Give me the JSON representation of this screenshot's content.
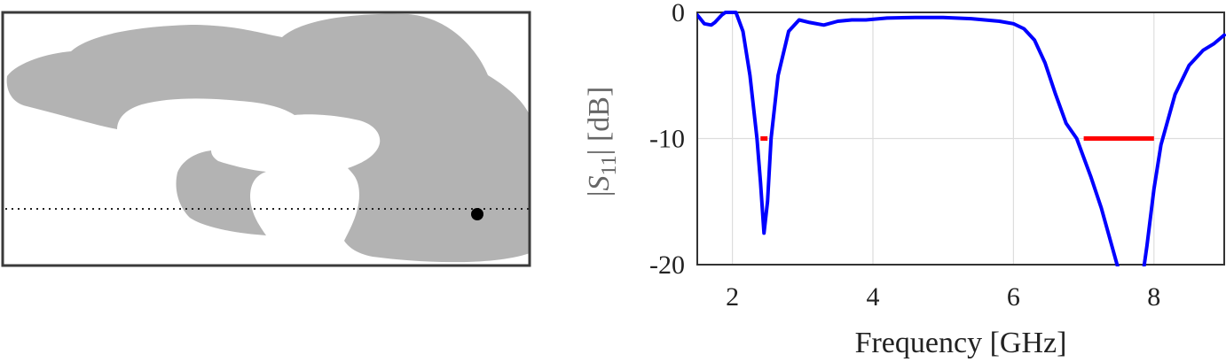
{
  "chart_data": [
    {
      "type": "diagram",
      "description_visible": "",
      "feed_marker": "black dot on dotted horizontal line"
    },
    {
      "type": "line",
      "xlabel": "Frequency [GHz]",
      "ylabel": {
        "open": "|",
        "symbol": "S",
        "subscript": "11",
        "close": "|",
        "unit": " [dB]"
      },
      "xlim": [
        1.5,
        9
      ],
      "ylim": [
        -20,
        0
      ],
      "x_ticks": [
        2,
        4,
        6,
        8
      ],
      "y_ticks": [
        0,
        -10,
        -20
      ],
      "x_tick_labels": [
        "2",
        "4",
        "6",
        "8"
      ],
      "y_tick_labels": [
        "0",
        "-10",
        "-20"
      ],
      "grid": true,
      "colors": {
        "curve": "#0000ff",
        "target": "#ff0000",
        "grid": "#dddddd",
        "shape": "#b3b3b3"
      },
      "series": [
        {
          "x": [
            1.5,
            1.6,
            1.7,
            1.75,
            1.85,
            1.9,
            2.05,
            2.15,
            2.25,
            2.35,
            2.4,
            2.45,
            2.5,
            2.55,
            2.65,
            2.8,
            2.95,
            3.1,
            3.3,
            3.5,
            3.7,
            3.9,
            4.2,
            4.6,
            5.0,
            5.4,
            5.8,
            6.0,
            6.15,
            6.3,
            6.45,
            6.6,
            6.75,
            6.9,
            7.0,
            7.1,
            7.25,
            7.4,
            7.5,
            7.55,
            7.85,
            7.9,
            8.0,
            8.1,
            8.3,
            8.5,
            8.7,
            8.85,
            9.0
          ],
          "y": [
            -0.2,
            -0.9,
            -1.0,
            -0.8,
            -0.2,
            0,
            0,
            -1.5,
            -5,
            -10,
            -13.5,
            -17.5,
            -15,
            -10,
            -5,
            -1.5,
            -0.6,
            -0.8,
            -1.0,
            -0.7,
            -0.6,
            -0.6,
            -0.45,
            -0.4,
            -0.4,
            -0.5,
            -0.7,
            -0.9,
            -1.3,
            -2.2,
            -4,
            -6.5,
            -8.8,
            -10,
            -11.5,
            -13,
            -15.5,
            -18.5,
            -20.5,
            -20.5,
            -20.5,
            -18.5,
            -14,
            -10.5,
            -6.5,
            -4.2,
            -3,
            -2.5,
            -1.8
          ]
        }
      ],
      "target_segments": [
        {
          "x": [
            2.4,
            2.5
          ],
          "y": -10
        },
        {
          "x": [
            7.0,
            8.0
          ],
          "y": -10
        }
      ]
    }
  ]
}
